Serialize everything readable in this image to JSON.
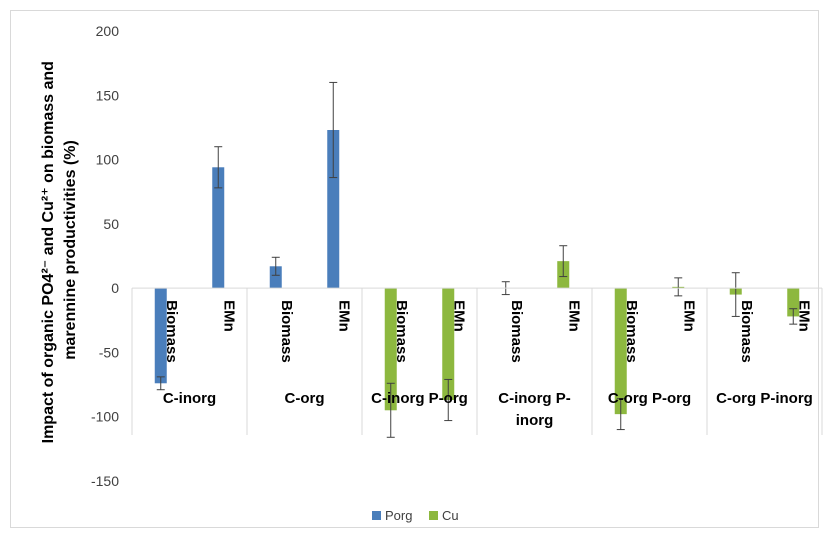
{
  "chart_data": {
    "type": "bar",
    "ylabel_line1": "Impact of organic PO4²⁻ and Cu²⁺ on biomass and",
    "ylabel_line2": "marennine productivities (%)",
    "ylim": [
      -150,
      200
    ],
    "yticks": [
      200,
      150,
      100,
      50,
      0,
      -50,
      -100,
      -150
    ],
    "grid": false,
    "legend_position": "bottom",
    "groups": [
      {
        "label_lines": [
          "C-inorg"
        ],
        "subcategories": [
          "Biomass",
          "EMn"
        ]
      },
      {
        "label_lines": [
          "C-org"
        ],
        "subcategories": [
          "Biomass",
          "EMn"
        ]
      },
      {
        "label_lines": [
          "C-inorg P-org"
        ],
        "subcategories": [
          "Biomass",
          "EMn"
        ]
      },
      {
        "label_lines": [
          "C-inorg P-",
          "inorg"
        ],
        "subcategories": [
          "Biomass",
          "EMn"
        ]
      },
      {
        "label_lines": [
          "C-org P-org"
        ],
        "subcategories": [
          "Biomass",
          "EMn"
        ]
      },
      {
        "label_lines": [
          "C-org P-inorg"
        ],
        "subcategories": [
          "Biomass",
          "EMn"
        ]
      }
    ],
    "series": [
      {
        "name": "Porg",
        "color": "#4a7ebb",
        "values": [
          -74,
          94,
          17,
          123,
          null,
          null,
          0,
          0,
          null,
          null,
          null,
          null
        ],
        "errors": [
          5,
          16,
          7,
          37,
          null,
          null,
          5,
          0,
          null,
          null,
          null,
          null
        ]
      },
      {
        "name": "Cu",
        "color": "#8db83f",
        "values": [
          null,
          null,
          null,
          null,
          -95,
          -87,
          0,
          21,
          -98,
          1,
          -5,
          -22
        ],
        "errors": [
          null,
          null,
          null,
          null,
          21,
          16,
          0,
          12,
          12,
          7,
          17,
          6
        ]
      }
    ]
  }
}
